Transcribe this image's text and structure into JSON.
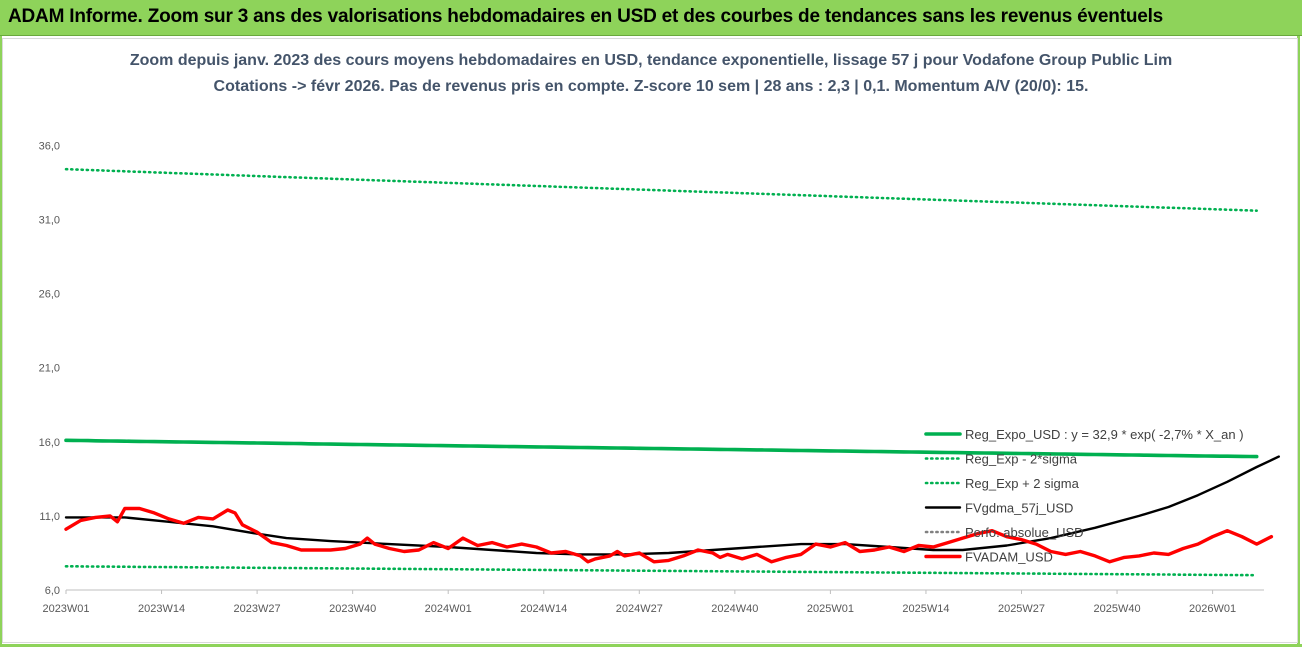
{
  "banner": {
    "title": "ADAM Informe. Zoom sur 3 ans des valorisations hebdomadaires en USD et des courbes de tendances sans les revenus éventuels"
  },
  "chart_data": {
    "type": "line",
    "title_line1": "Zoom depuis janv. 2023 des cours moyens hebdomadaires en USD, tendance exponentielle, lissage 57 j pour Vodafone Group Public Lim",
    "title_line2": "Cotations -> févr 2026. Pas de revenus pris en compte. Z-score 10 sem | 28 ans : 2,3 | 0,1. Momentum A/V (20/0): 15.",
    "ylim": [
      6.0,
      39.0
    ],
    "yticks": [
      "6,0",
      "11,0",
      "16,0",
      "21,0",
      "26,0",
      "31,0",
      "36,0"
    ],
    "ytick_values": [
      6,
      11,
      16,
      21,
      26,
      31,
      36
    ],
    "xticks": [
      "2023W01",
      "2023W14",
      "2023W27",
      "2023W40",
      "2024W01",
      "2024W14",
      "2024W27",
      "2024W40",
      "2025W01",
      "2025W14",
      "2025W27",
      "2025W40",
      "2026W01"
    ],
    "n_weeks": 163,
    "grid": false,
    "legend_position": "right",
    "series": [
      {
        "name": "Reg_Expo_USD : y = 32,9 * exp( -2,7% *  X_an )",
        "color": "#00b050",
        "style": "solid",
        "start": 16.1,
        "end": 15.0
      },
      {
        "name": "Reg_Exp - 2*sigma",
        "color": "#00b050",
        "style": "dotted",
        "start": 7.6,
        "end": 7.0
      },
      {
        "name": "Reg_Exp + 2 sigma",
        "color": "#00b050",
        "style": "dotted",
        "start": 34.4,
        "end": 31.6
      },
      {
        "name": "FVgdma_57j_USD",
        "color": "#000000",
        "style": "solid",
        "points": [
          [
            0,
            10.9
          ],
          [
            8,
            10.9
          ],
          [
            14,
            10.6
          ],
          [
            20,
            10.3
          ],
          [
            26,
            9.8
          ],
          [
            30,
            9.5
          ],
          [
            36,
            9.3
          ],
          [
            44,
            9.1
          ],
          [
            52,
            8.9
          ],
          [
            58,
            8.7
          ],
          [
            64,
            8.5
          ],
          [
            70,
            8.4
          ],
          [
            76,
            8.4
          ],
          [
            82,
            8.5
          ],
          [
            88,
            8.7
          ],
          [
            94,
            8.9
          ],
          [
            100,
            9.1
          ],
          [
            106,
            9.1
          ],
          [
            112,
            8.9
          ],
          [
            118,
            8.7
          ],
          [
            122,
            8.7
          ],
          [
            128,
            9.0
          ],
          [
            134,
            9.5
          ],
          [
            140,
            10.2
          ],
          [
            146,
            11.0
          ],
          [
            150,
            11.6
          ],
          [
            154,
            12.4
          ],
          [
            158,
            13.3
          ],
          [
            162,
            14.3
          ],
          [
            165,
            15.0
          ]
        ]
      },
      {
        "name": "Perfo. absolue_USD",
        "color": "#808080",
        "style": "dotted",
        "points": []
      },
      {
        "name": "FVADAM_USD",
        "color": "#ff0000",
        "style": "solid",
        "points": [
          [
            0,
            10.1
          ],
          [
            2,
            10.7
          ],
          [
            4,
            10.9
          ],
          [
            6,
            11.0
          ],
          [
            7,
            10.6
          ],
          [
            8,
            11.5
          ],
          [
            10,
            11.5
          ],
          [
            12,
            11.2
          ],
          [
            14,
            10.8
          ],
          [
            16,
            10.5
          ],
          [
            18,
            10.9
          ],
          [
            20,
            10.8
          ],
          [
            22,
            11.4
          ],
          [
            23,
            11.2
          ],
          [
            24,
            10.4
          ],
          [
            26,
            9.9
          ],
          [
            28,
            9.2
          ],
          [
            30,
            9.0
          ],
          [
            32,
            8.7
          ],
          [
            36,
            8.7
          ],
          [
            38,
            8.8
          ],
          [
            40,
            9.1
          ],
          [
            41,
            9.5
          ],
          [
            42,
            9.1
          ],
          [
            44,
            8.8
          ],
          [
            46,
            8.6
          ],
          [
            48,
            8.7
          ],
          [
            50,
            9.2
          ],
          [
            52,
            8.8
          ],
          [
            54,
            9.5
          ],
          [
            56,
            9.0
          ],
          [
            58,
            9.2
          ],
          [
            60,
            8.9
          ],
          [
            62,
            9.1
          ],
          [
            64,
            8.9
          ],
          [
            66,
            8.5
          ],
          [
            68,
            8.6
          ],
          [
            70,
            8.3
          ],
          [
            71,
            7.9
          ],
          [
            72,
            8.1
          ],
          [
            74,
            8.3
          ],
          [
            75,
            8.6
          ],
          [
            76,
            8.3
          ],
          [
            78,
            8.5
          ],
          [
            80,
            7.9
          ],
          [
            82,
            8.0
          ],
          [
            84,
            8.3
          ],
          [
            86,
            8.7
          ],
          [
            88,
            8.5
          ],
          [
            89,
            8.2
          ],
          [
            90,
            8.4
          ],
          [
            92,
            8.1
          ],
          [
            94,
            8.4
          ],
          [
            96,
            7.9
          ],
          [
            98,
            8.2
          ],
          [
            100,
            8.4
          ],
          [
            102,
            9.1
          ],
          [
            104,
            8.9
          ],
          [
            106,
            9.2
          ],
          [
            108,
            8.6
          ],
          [
            110,
            8.7
          ],
          [
            112,
            8.9
          ],
          [
            114,
            8.6
          ],
          [
            116,
            9.0
          ],
          [
            118,
            8.9
          ],
          [
            120,
            9.2
          ],
          [
            122,
            9.5
          ],
          [
            124,
            9.8
          ],
          [
            126,
            10.0
          ],
          [
            128,
            9.6
          ],
          [
            130,
            9.4
          ],
          [
            132,
            9.1
          ],
          [
            134,
            8.6
          ],
          [
            136,
            8.4
          ],
          [
            138,
            8.6
          ],
          [
            140,
            8.3
          ],
          [
            142,
            7.9
          ],
          [
            144,
            8.2
          ],
          [
            146,
            8.3
          ],
          [
            148,
            8.5
          ],
          [
            150,
            8.4
          ],
          [
            152,
            8.8
          ],
          [
            154,
            9.1
          ],
          [
            156,
            9.6
          ],
          [
            158,
            10.0
          ],
          [
            160,
            9.6
          ],
          [
            162,
            9.1
          ],
          [
            164,
            9.6
          ]
        ]
      }
    ]
  }
}
